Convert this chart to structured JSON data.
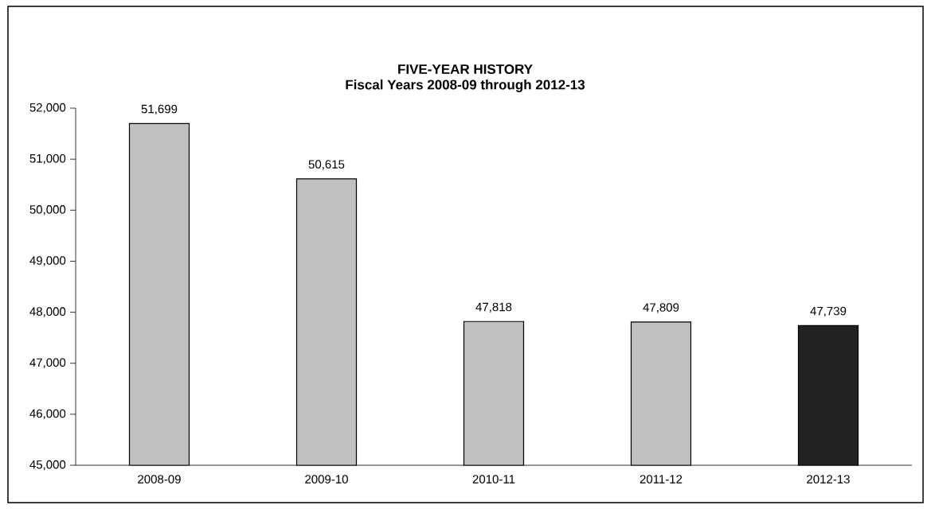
{
  "chart_data": {
    "type": "bar",
    "title": "FIVE-YEAR HISTORY",
    "subtitle": "Fiscal Years 2008-09 through 2012-13",
    "categories": [
      "2008-09",
      "2009-10",
      "2010-11",
      "2011-12",
      "2012-13"
    ],
    "values": [
      51699,
      50615,
      47818,
      47809,
      47739
    ],
    "colors": [
      "#c0c0c0",
      "#c0c0c0",
      "#c0c0c0",
      "#c0c0c0",
      "#222222"
    ],
    "value_labels": [
      "51,699",
      "50,615",
      "47,818",
      "47,809",
      "47,739"
    ],
    "ylim": [
      45000,
      52000
    ],
    "yticks": [
      {
        "value": 45000,
        "label": "45,000"
      },
      {
        "value": 46000,
        "label": "46,000"
      },
      {
        "value": 47000,
        "label": "47,000"
      },
      {
        "value": 48000,
        "label": "48,000"
      },
      {
        "value": 49000,
        "label": "49,000"
      },
      {
        "value": 50000,
        "label": "50,000"
      },
      {
        "value": 51000,
        "label": "51,000"
      },
      {
        "value": 52000,
        "label": "52,000"
      }
    ],
    "grid": false
  }
}
